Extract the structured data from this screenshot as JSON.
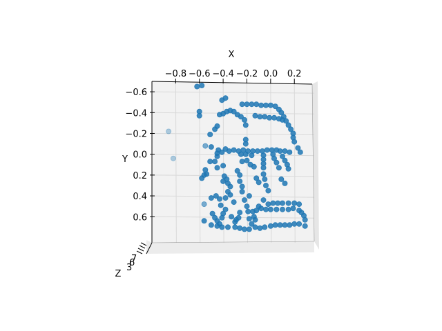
{
  "chart_data": {
    "type": "scatter",
    "projection": "3d",
    "title": "",
    "xlabel": "X",
    "ylabel": "Y",
    "zlabel": "Z",
    "x_axis_position": "top",
    "y_axis_direction": "inverted",
    "xlim": [
      -1.0,
      0.35
    ],
    "ylim": [
      -0.7,
      0.85
    ],
    "x_ticks": [
      {
        "value": -0.8,
        "label": "−0.8"
      },
      {
        "value": -0.6,
        "label": "−0.6"
      },
      {
        "value": -0.4,
        "label": "−0.4"
      },
      {
        "value": -0.2,
        "label": "−0.2"
      },
      {
        "value": 0.0,
        "label": "0.0"
      },
      {
        "value": 0.2,
        "label": "0.2"
      }
    ],
    "y_ticks": [
      {
        "value": -0.6,
        "label": "−0.6"
      },
      {
        "value": -0.4,
        "label": "−0.4"
      },
      {
        "value": -0.2,
        "label": "−0.2"
      },
      {
        "value": 0.0,
        "label": "0.0"
      },
      {
        "value": 0.2,
        "label": "0.2"
      },
      {
        "value": 0.4,
        "label": "0.4"
      },
      {
        "value": 0.6,
        "label": "0.6"
      }
    ],
    "z_tick_labels_overlapping": [
      "3",
      "6",
      "7"
    ],
    "grid": true,
    "pane_color": "#f2f2f2",
    "grid_color": "#d9d9d9",
    "marker_color": "#1f77b4",
    "series": [
      {
        "points": [
          [
            -0.62,
            -0.65,
            1
          ],
          [
            -0.58,
            -0.66,
            1
          ],
          [
            -0.41,
            -0.52,
            1
          ],
          [
            -0.38,
            -0.54,
            1
          ],
          [
            -0.24,
            -0.48,
            1
          ],
          [
            -0.2,
            -0.48,
            1
          ],
          [
            -0.16,
            -0.48,
            1
          ],
          [
            -0.12,
            -0.48,
            1
          ],
          [
            -0.08,
            -0.47,
            1
          ],
          [
            -0.04,
            -0.47,
            1
          ],
          [
            0.0,
            -0.47,
            1
          ],
          [
            0.04,
            -0.46,
            1
          ],
          [
            0.07,
            -0.43,
            1
          ],
          [
            0.09,
            -0.4,
            1
          ],
          [
            0.11,
            -0.36,
            1
          ],
          [
            0.13,
            -0.32,
            1
          ],
          [
            0.15,
            -0.28,
            1
          ],
          [
            0.17,
            -0.24,
            1
          ],
          [
            0.19,
            -0.2,
            1
          ],
          [
            -0.6,
            -0.41,
            1
          ],
          [
            -0.6,
            -0.37,
            1
          ],
          [
            -0.43,
            -0.38,
            1
          ],
          [
            -0.4,
            -0.39,
            1
          ],
          [
            -0.37,
            -0.41,
            1
          ],
          [
            -0.34,
            -0.42,
            1
          ],
          [
            -0.31,
            -0.41,
            1
          ],
          [
            -0.28,
            -0.38,
            1
          ],
          [
            -0.25,
            -0.36,
            1
          ],
          [
            -0.22,
            -0.33,
            1
          ],
          [
            -0.21,
            -0.28,
            1
          ],
          [
            -0.13,
            -0.37,
            1
          ],
          [
            -0.09,
            -0.36,
            1
          ],
          [
            -0.05,
            -0.36,
            1
          ],
          [
            -0.01,
            -0.35,
            1
          ],
          [
            0.03,
            -0.35,
            1
          ],
          [
            0.07,
            -0.34,
            1
          ],
          [
            0.1,
            -0.33,
            1
          ],
          [
            -0.47,
            -0.24,
            1
          ],
          [
            -0.45,
            -0.27,
            1
          ],
          [
            -0.51,
            -0.19,
            1
          ],
          [
            -0.21,
            -0.14,
            1
          ],
          [
            -0.21,
            -0.1,
            1
          ],
          [
            0.19,
            -0.16,
            1
          ],
          [
            0.2,
            -0.12,
            1
          ],
          [
            0.23,
            -0.06,
            1
          ],
          [
            0.25,
            -0.02,
            1
          ],
          [
            -0.55,
            -0.08,
            0.7
          ],
          [
            -0.5,
            -0.07,
            1
          ],
          [
            -0.44,
            -0.04,
            1
          ],
          [
            -0.41,
            -0.02,
            1
          ],
          [
            -0.38,
            -0.05,
            1
          ],
          [
            -0.35,
            -0.03,
            1
          ],
          [
            -0.31,
            -0.04,
            1
          ],
          [
            -0.27,
            -0.03,
            1
          ],
          [
            -0.23,
            -0.04,
            1
          ],
          [
            -0.19,
            -0.03,
            1
          ],
          [
            -0.15,
            -0.03,
            1
          ],
          [
            -0.11,
            -0.03,
            1
          ],
          [
            -0.07,
            -0.03,
            1
          ],
          [
            -0.03,
            -0.04,
            1
          ],
          [
            0.01,
            -0.04,
            1
          ],
          [
            0.05,
            -0.04,
            1
          ],
          [
            0.08,
            -0.03,
            1
          ],
          [
            0.12,
            -0.03,
            1
          ],
          [
            0.16,
            -0.02,
            1
          ],
          [
            -0.45,
            -0.01,
            1
          ],
          [
            -0.45,
            0.02,
            1
          ],
          [
            -0.25,
            0.0,
            1
          ],
          [
            -0.21,
            0.0,
            1
          ],
          [
            -0.16,
            0.01,
            1
          ],
          [
            -0.06,
            0.01,
            1
          ],
          [
            -0.06,
            0.05,
            1
          ],
          [
            -0.06,
            0.09,
            1
          ],
          [
            -0.06,
            0.13,
            1
          ],
          [
            0.02,
            0.0,
            1
          ],
          [
            0.03,
            0.04,
            1
          ],
          [
            0.05,
            0.08,
            1
          ],
          [
            0.07,
            0.13,
            1
          ],
          [
            0.1,
            0.02,
            1
          ],
          [
            0.12,
            0.06,
            1
          ],
          [
            0.14,
            0.1,
            1
          ],
          [
            0.15,
            0.14,
            1
          ],
          [
            -0.24,
            0.07,
            1
          ],
          [
            -0.2,
            0.06,
            1
          ],
          [
            -0.17,
            0.1,
            1
          ],
          [
            -0.14,
            0.12,
            1
          ],
          [
            -0.51,
            0.07,
            1
          ],
          [
            -0.47,
            0.07,
            1
          ],
          [
            -0.45,
            0.13,
            1
          ],
          [
            -0.4,
            0.11,
            1
          ],
          [
            -0.55,
            0.15,
            1
          ],
          [
            -0.54,
            0.19,
            1
          ],
          [
            -0.39,
            0.21,
            1
          ],
          [
            -0.4,
            0.26,
            1
          ],
          [
            -0.37,
            0.24,
            1
          ],
          [
            -0.36,
            0.28,
            1
          ],
          [
            -0.34,
            0.31,
            1
          ],
          [
            -0.28,
            0.16,
            1
          ],
          [
            -0.26,
            0.2,
            1
          ],
          [
            -0.26,
            0.26,
            1
          ],
          [
            -0.24,
            0.31,
            1
          ],
          [
            -0.06,
            0.19,
            1
          ],
          [
            -0.05,
            0.24,
            1
          ],
          [
            -0.04,
            0.3,
            1
          ],
          [
            -0.02,
            0.35,
            1
          ],
          [
            0.09,
            0.24,
            1
          ],
          [
            0.12,
            0.28,
            1
          ],
          [
            -0.12,
            0.23,
            1
          ],
          [
            -0.1,
            0.27,
            1
          ],
          [
            -0.58,
            0.23,
            1
          ],
          [
            -0.56,
            0.2,
            1
          ],
          [
            -0.5,
            0.42,
            1
          ],
          [
            -0.46,
            0.4,
            1
          ],
          [
            -0.43,
            0.43,
            1
          ],
          [
            -0.42,
            0.49,
            1
          ],
          [
            -0.38,
            0.42,
            1
          ],
          [
            -0.36,
            0.36,
            1
          ],
          [
            -0.34,
            0.39,
            1
          ],
          [
            -0.31,
            0.46,
            1
          ],
          [
            -0.24,
            0.36,
            1
          ],
          [
            -0.22,
            0.44,
            1
          ],
          [
            -0.2,
            0.5,
            1
          ],
          [
            -0.18,
            0.4,
            1
          ],
          [
            -0.06,
            0.44,
            1
          ],
          [
            -0.02,
            0.48,
            1
          ],
          [
            0.02,
            0.47,
            1
          ],
          [
            0.06,
            0.47,
            1
          ],
          [
            0.1,
            0.47,
            1
          ],
          [
            0.15,
            0.47,
            1
          ],
          [
            0.2,
            0.47,
            1
          ],
          [
            0.24,
            0.48,
            1
          ],
          [
            -0.15,
            0.55,
            1
          ],
          [
            -0.12,
            0.54,
            1
          ],
          [
            -0.1,
            0.5,
            1
          ],
          [
            -0.08,
            0.52,
            1
          ],
          [
            -0.04,
            0.53,
            1
          ],
          [
            0.0,
            0.53,
            1
          ],
          [
            0.05,
            0.53,
            1
          ],
          [
            0.1,
            0.53,
            1
          ],
          [
            0.15,
            0.53,
            1
          ],
          [
            0.19,
            0.52,
            1
          ],
          [
            0.24,
            0.54,
            1
          ],
          [
            0.26,
            0.56,
            1
          ],
          [
            0.28,
            0.59,
            1
          ],
          [
            0.29,
            0.63,
            1
          ],
          [
            -0.49,
            0.57,
            1
          ],
          [
            -0.47,
            0.61,
            1
          ],
          [
            -0.45,
            0.64,
            1
          ],
          [
            -0.43,
            0.67,
            1
          ],
          [
            -0.41,
            0.61,
            1
          ],
          [
            -0.4,
            0.57,
            1
          ],
          [
            -0.38,
            0.53,
            1
          ],
          [
            -0.33,
            0.6,
            1
          ],
          [
            -0.3,
            0.65,
            1
          ],
          [
            -0.27,
            0.61,
            1
          ],
          [
            -0.26,
            0.56,
            1
          ],
          [
            -0.19,
            0.55,
            1
          ],
          [
            -0.18,
            0.62,
            1
          ],
          [
            -0.16,
            0.67,
            1
          ],
          [
            -0.13,
            0.63,
            1
          ],
          [
            -0.56,
            0.64,
            1
          ],
          [
            -0.5,
            0.68,
            1
          ],
          [
            -0.45,
            0.69,
            1
          ],
          [
            -0.41,
            0.7,
            1
          ],
          [
            -0.36,
            0.7,
            1
          ],
          [
            -0.3,
            0.7,
            1
          ],
          [
            -0.26,
            0.71,
            1
          ],
          [
            -0.22,
            0.72,
            1
          ],
          [
            -0.18,
            0.72,
            1
          ],
          [
            -0.13,
            0.7,
            1
          ],
          [
            -0.09,
            0.71,
            1
          ],
          [
            -0.05,
            0.7,
            1
          ],
          [
            0.0,
            0.69,
            1
          ],
          [
            0.04,
            0.68,
            1
          ],
          [
            0.08,
            0.68,
            1
          ],
          [
            0.12,
            0.68,
            1
          ],
          [
            0.16,
            0.68,
            1
          ],
          [
            0.2,
            0.67,
            1
          ],
          [
            0.24,
            0.67,
            1
          ],
          [
            0.29,
            0.69,
            1
          ],
          [
            -0.29,
            0.63,
            1
          ],
          [
            -0.14,
            0.6,
            1
          ],
          [
            -0.86,
            -0.22,
            0.4
          ],
          [
            -0.82,
            0.04,
            0.4
          ],
          [
            -0.56,
            0.48,
            0.7
          ]
        ]
      }
    ]
  }
}
